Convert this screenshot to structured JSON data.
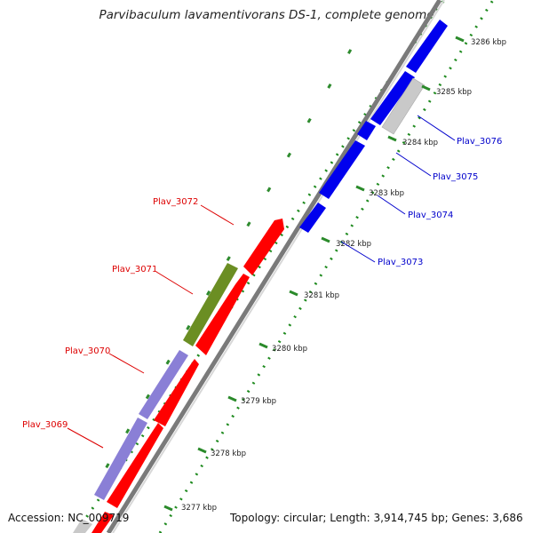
{
  "title": "Parvibaculum lavamentivorans DS-1, complete genome",
  "accession": "Accession: NC_009719",
  "summary": "Topology: circular; Length: 3,914,745 bp; Genes: 3,686",
  "colors": {
    "forward_cds": "#0000ee",
    "reverse_cds": "#ff0000",
    "rna_or_other": "#c8c8c8",
    "green_feature": "#6b8e23",
    "lavender_feature": "#8a7fd6",
    "gc_dots": "#228b22",
    "forward_label": "#0000cc",
    "reverse_label": "#dd0000",
    "backbone": "#888888"
  },
  "tick_labels": [
    "3277 kbp",
    "3278 kbp",
    "3279 kbp",
    "3280 kbp",
    "3281 kbp",
    "3282 kbp",
    "3283 kbp",
    "3284 kbp",
    "3285 kbp",
    "3286 kbp"
  ],
  "forward_genes": [
    "Plav_3073",
    "Plav_3074",
    "Plav_3075",
    "Plav_3076"
  ],
  "reverse_genes": [
    "Plav_3069",
    "Plav_3070",
    "Plav_3071",
    "Plav_3072"
  ]
}
